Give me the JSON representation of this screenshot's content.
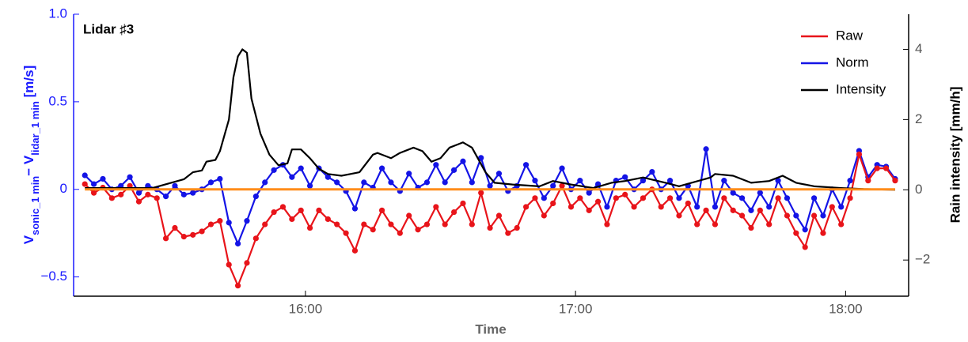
{
  "chart_data": {
    "type": "line",
    "annotation": "Lidar ♯3",
    "xlabel": "Time",
    "ylabel": [
      {
        "text": "V",
        "sub": "sonic_1 min"
      },
      {
        "text": "− V",
        "sub": "lidar_1 min"
      },
      {
        "text": " [m/s]"
      }
    ],
    "y2label": "Rain intensity [mm/h]",
    "y_axis_color": "#1a1aff",
    "xlim": [
      908.5,
      1094
    ],
    "xticks": [
      {
        "value": 960,
        "label": "16:00"
      },
      {
        "value": 1020,
        "label": "17:00"
      },
      {
        "value": 1080,
        "label": "18:00"
      }
    ],
    "ylim": [
      -0.61,
      1.0
    ],
    "yticks": [
      {
        "value": -0.5,
        "label": "−0.5"
      },
      0,
      0.5,
      {
        "value": 1,
        "label": "1.0"
      }
    ],
    "y2lim": [
      -3.03,
      5
    ],
    "y2ticks": [
      {
        "value": -2,
        "label": "−2"
      },
      0,
      2,
      4
    ],
    "legend": "upper right",
    "x": [
      911,
      913,
      915,
      917,
      919,
      921,
      923,
      925,
      927,
      929,
      931,
      933,
      935,
      937,
      939,
      941,
      943,
      945,
      947,
      949,
      951,
      953,
      955,
      957,
      959,
      961,
      963,
      965,
      967,
      969,
      971,
      973,
      975,
      977,
      979,
      981,
      983,
      985,
      987,
      989,
      991,
      993,
      995,
      997,
      999,
      1001,
      1003,
      1005,
      1007,
      1009,
      1011,
      1013,
      1015,
      1017,
      1019,
      1021,
      1023,
      1025,
      1027,
      1029,
      1031,
      1033,
      1035,
      1037,
      1039,
      1041,
      1043,
      1045,
      1047,
      1049,
      1051,
      1053,
      1055,
      1057,
      1059,
      1061,
      1063,
      1065,
      1067,
      1069,
      1071,
      1073,
      1075,
      1077,
      1079,
      1081,
      1083,
      1085,
      1087,
      1089,
      1091
    ],
    "series": [
      {
        "name": "Raw",
        "color": "#e8141a",
        "markers": true,
        "values": [
          0.03,
          -0.02,
          0.01,
          -0.05,
          -0.03,
          0.02,
          -0.07,
          -0.03,
          -0.05,
          -0.28,
          -0.22,
          -0.27,
          -0.26,
          -0.24,
          -0.2,
          -0.18,
          -0.43,
          -0.55,
          -0.42,
          -0.28,
          -0.2,
          -0.13,
          -0.1,
          -0.17,
          -0.12,
          -0.22,
          -0.12,
          -0.17,
          -0.2,
          -0.25,
          -0.35,
          -0.2,
          -0.23,
          -0.12,
          -0.2,
          -0.25,
          -0.15,
          -0.23,
          -0.2,
          -0.1,
          -0.2,
          -0.13,
          -0.08,
          -0.2,
          -0.02,
          -0.22,
          -0.15,
          -0.25,
          -0.22,
          -0.1,
          -0.05,
          -0.15,
          -0.08,
          0.02,
          -0.1,
          -0.05,
          -0.12,
          -0.07,
          -0.2,
          -0.05,
          -0.03,
          -0.1,
          -0.05,
          0.0,
          -0.1,
          -0.05,
          -0.15,
          -0.08,
          -0.2,
          -0.12,
          -0.2,
          -0.05,
          -0.12,
          -0.15,
          -0.22,
          -0.12,
          -0.2,
          -0.05,
          -0.15,
          -0.25,
          -0.33,
          -0.15,
          -0.25,
          -0.1,
          -0.2,
          -0.05,
          0.2,
          0.05,
          0.12,
          0.12,
          0.05
        ]
      },
      {
        "name": "Norm",
        "color": "#1414e6",
        "markers": true,
        "values": [
          0.08,
          0.03,
          0.06,
          0.0,
          0.02,
          0.07,
          -0.02,
          0.02,
          0.0,
          -0.04,
          0.02,
          -0.03,
          -0.02,
          0.0,
          0.04,
          0.06,
          -0.19,
          -0.31,
          -0.18,
          -0.04,
          0.04,
          0.11,
          0.14,
          0.07,
          0.12,
          0.02,
          0.12,
          0.07,
          0.04,
          -0.01,
          -0.11,
          0.04,
          0.01,
          0.12,
          0.04,
          -0.01,
          0.09,
          0.01,
          0.04,
          0.14,
          0.04,
          0.11,
          0.16,
          0.04,
          0.18,
          0.02,
          0.09,
          -0.01,
          0.02,
          0.14,
          0.05,
          -0.05,
          0.02,
          0.12,
          0.0,
          0.05,
          -0.02,
          0.03,
          -0.1,
          0.05,
          0.07,
          0.0,
          0.05,
          0.1,
          0.0,
          0.05,
          -0.05,
          0.02,
          -0.1,
          0.23,
          -0.1,
          0.05,
          -0.02,
          -0.05,
          -0.12,
          -0.02,
          -0.1,
          0.05,
          -0.05,
          -0.15,
          -0.23,
          -0.05,
          -0.15,
          0.0,
          -0.1,
          0.05,
          0.22,
          0.07,
          0.14,
          0.13,
          0.06
        ]
      },
      {
        "name": "Intensity",
        "color": "#000000",
        "axis": "y2",
        "markers": false,
        "x": [
          911,
          926,
          933,
          935,
          937,
          938,
          940,
          941,
          943,
          944,
          945,
          946,
          947,
          948,
          950,
          952,
          954,
          956,
          957,
          959,
          961,
          963,
          965,
          968,
          970,
          972,
          975,
          976,
          979,
          981,
          984,
          986,
          988,
          990,
          992,
          994,
          995,
          997,
          1000,
          1002,
          1006,
          1012,
          1015,
          1019,
          1024,
          1028,
          1031,
          1035,
          1040,
          1043,
          1050,
          1051,
          1055,
          1059,
          1063,
          1066,
          1069,
          1073,
          1079,
          1084,
          1091
        ],
        "values": [
          0.05,
          0.05,
          0.3,
          0.5,
          0.55,
          0.8,
          0.85,
          1.1,
          2.0,
          3.2,
          3.8,
          4.0,
          3.9,
          2.6,
          1.6,
          1.0,
          0.7,
          0.75,
          1.15,
          1.15,
          0.9,
          0.6,
          0.45,
          0.4,
          0.45,
          0.5,
          1.0,
          1.05,
          0.9,
          1.05,
          1.2,
          1.1,
          0.8,
          0.9,
          1.2,
          1.3,
          1.35,
          1.2,
          0.5,
          0.2,
          0.15,
          0.1,
          0.25,
          0.15,
          0.05,
          0.2,
          0.25,
          0.35,
          0.2,
          0.1,
          0.35,
          0.45,
          0.4,
          0.2,
          0.25,
          0.4,
          0.2,
          0.1,
          0.05,
          0.02,
          0.0
        ]
      }
    ],
    "reference_line": {
      "y": 0,
      "color": "#ff8c1a",
      "x": [
        911,
        1091
      ]
    }
  }
}
